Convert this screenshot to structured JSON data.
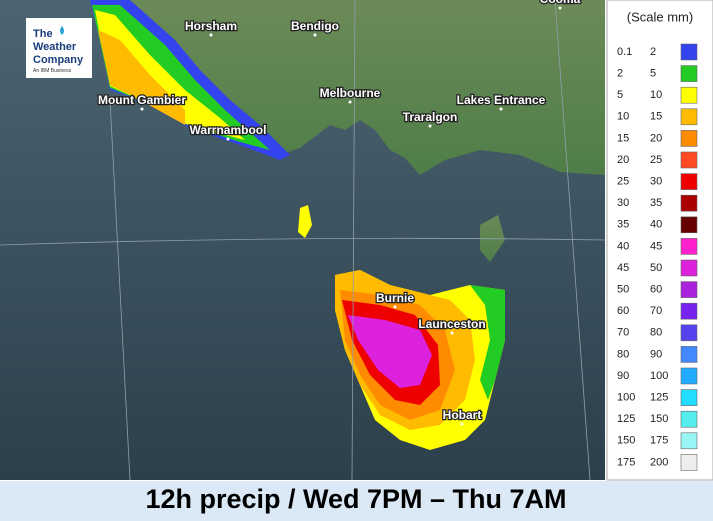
{
  "logo": {
    "name": [
      "The",
      "Weather",
      "Company"
    ],
    "tagline": "An IBM Business"
  },
  "places": [
    "Horsham",
    "Bendigo",
    "Melbourne",
    "Mount Gambier",
    "Warrnambool",
    "Traralgon",
    "Lakes Entrance",
    "Burnie",
    "Launceston",
    "Hobart",
    "Cooma"
  ],
  "legend": {
    "title": "(Scale mm)",
    "rows": [
      {
        "low": 0.1,
        "high": 2,
        "color": "#3344ee"
      },
      {
        "low": 2,
        "high": 5,
        "color": "#22cc22"
      },
      {
        "low": 5,
        "high": 10,
        "color": "#ffff00"
      },
      {
        "low": 10,
        "high": 15,
        "color": "#ffbb00"
      },
      {
        "low": 15,
        "high": 20,
        "color": "#ff8c00"
      },
      {
        "low": 20,
        "high": 25,
        "color": "#ff4a22"
      },
      {
        "low": 25,
        "high": 30,
        "color": "#ee0000"
      },
      {
        "low": 30,
        "high": 35,
        "color": "#aa0000"
      },
      {
        "low": 35,
        "high": 40,
        "color": "#660000"
      },
      {
        "low": 40,
        "high": 45,
        "color": "#ff22cc"
      },
      {
        "low": 45,
        "high": 50,
        "color": "#dd22dd"
      },
      {
        "low": 50,
        "high": 60,
        "color": "#aa22dd"
      },
      {
        "low": 60,
        "high": 70,
        "color": "#7722ee"
      },
      {
        "low": 70,
        "high": 80,
        "color": "#5544ee"
      },
      {
        "low": 80,
        "high": 90,
        "color": "#4488ff"
      },
      {
        "low": 90,
        "high": 100,
        "color": "#22aaff"
      },
      {
        "low": 100,
        "high": 125,
        "color": "#22ddff"
      },
      {
        "low": 125,
        "high": 150,
        "color": "#55eeee"
      },
      {
        "low": 150,
        "high": 175,
        "color": "#99f5f5"
      },
      {
        "low": 175,
        "high": 200,
        "color": "#eeeeee"
      }
    ]
  },
  "caption": "12h precip / Wed 7PM – Thu 7AM"
}
